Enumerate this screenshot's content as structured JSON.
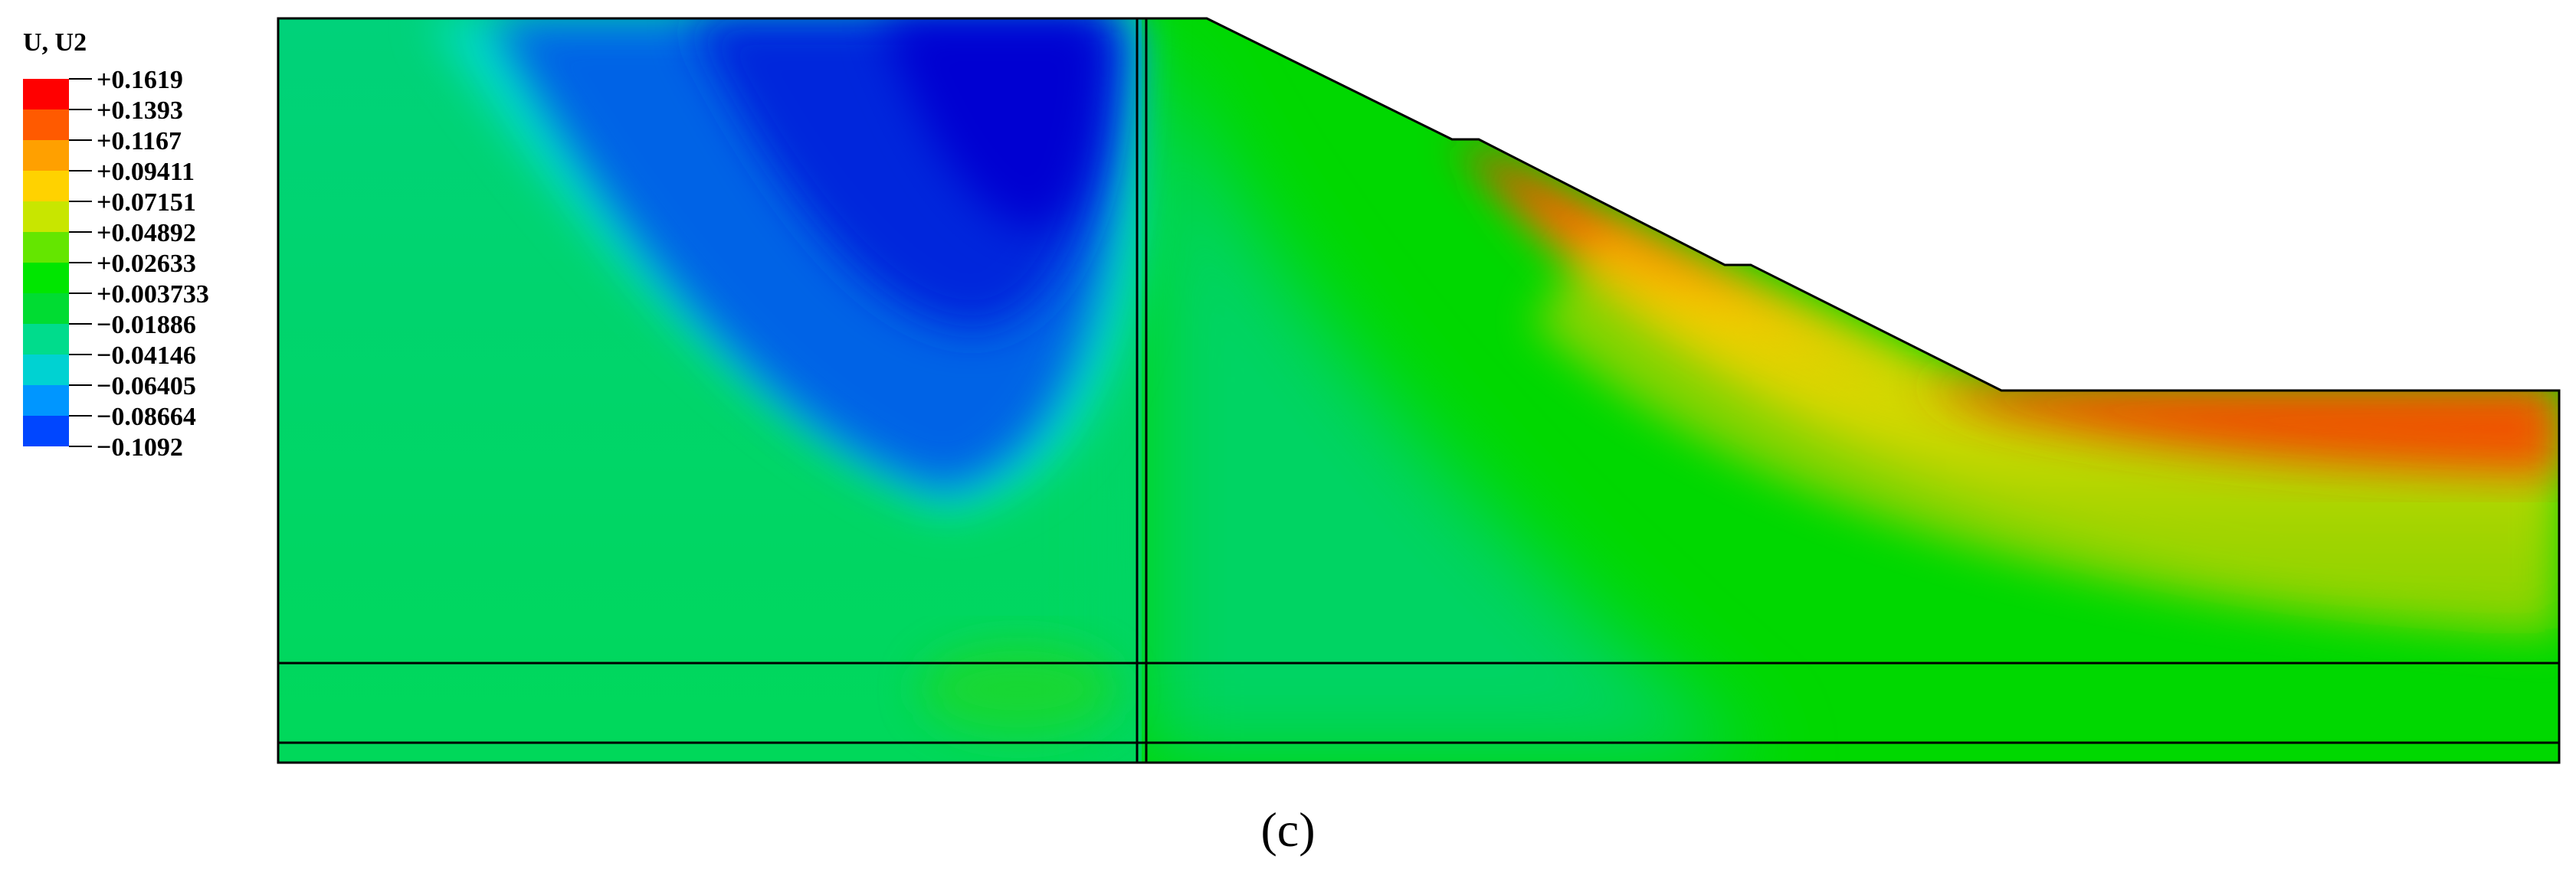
{
  "legend": {
    "title": "U, U2",
    "values": [
      "+0.1619",
      "+0.1393",
      "+0.1167",
      "+0.09411",
      "+0.07151",
      "+0.04892",
      "+0.02633",
      "+0.003733",
      "−0.01886",
      "−0.04146",
      "−0.06405",
      "−0.08664",
      "−0.1092"
    ],
    "colors": [
      "#ff0000",
      "#ff5a00",
      "#ffa000",
      "#ffd200",
      "#c8e600",
      "#64e600",
      "#00e600",
      "#00dc32",
      "#00dc8c",
      "#00d2d2",
      "#0096ff",
      "#0046ff",
      "#0000ff"
    ]
  },
  "colormap": {
    "red": "#ff0000",
    "orange": "#ff7800",
    "yellow": "#e6dc00",
    "green": "#00dc00",
    "teal_green": "#00d26e",
    "cyan": "#00dcd2",
    "blue": "#0050e6",
    "deep_blue": "#0000d2"
  },
  "caption": "(c)"
}
